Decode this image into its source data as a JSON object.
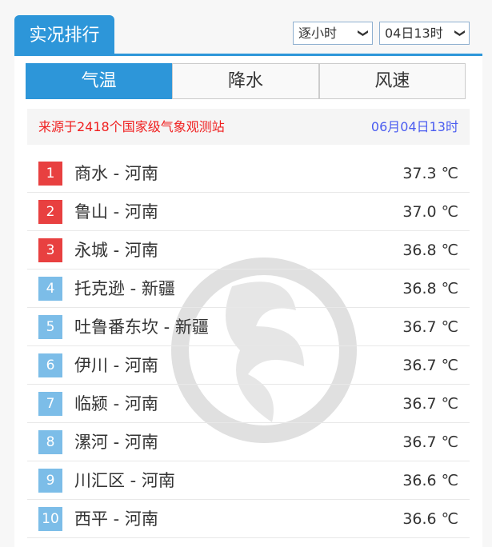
{
  "header": {
    "title": "实况排行"
  },
  "selects": {
    "mode": "逐小时",
    "time": "04日13时"
  },
  "tabs": [
    {
      "label": "气温",
      "active": true
    },
    {
      "label": "降水",
      "active": false
    },
    {
      "label": "风速",
      "active": false
    }
  ],
  "source": {
    "text": "来源于2418个国家级气象观测站",
    "time": "06月04日13时"
  },
  "colors": {
    "accent": "#2d96d9",
    "top_rank": "#e84040",
    "rank": "#7cbde8"
  },
  "rows": [
    {
      "rank": "1",
      "name": "商水 - 河南",
      "value": "37.3 ℃"
    },
    {
      "rank": "2",
      "name": "鲁山 - 河南",
      "value": "37.0 ℃"
    },
    {
      "rank": "3",
      "name": "永城 - 河南",
      "value": "36.8 ℃"
    },
    {
      "rank": "4",
      "name": "托克逊 - 新疆",
      "value": "36.8 ℃"
    },
    {
      "rank": "5",
      "name": "吐鲁番东坎 - 新疆",
      "value": "36.7 ℃"
    },
    {
      "rank": "6",
      "name": "伊川 - 河南",
      "value": "36.7 ℃"
    },
    {
      "rank": "7",
      "name": "临颍 - 河南",
      "value": "36.7 ℃"
    },
    {
      "rank": "8",
      "name": "漯河 - 河南",
      "value": "36.7 ℃"
    },
    {
      "rank": "9",
      "name": "川汇区 - 河南",
      "value": "36.6 ℃"
    },
    {
      "rank": "10",
      "name": "西平 - 河南",
      "value": "36.6 ℃"
    }
  ]
}
